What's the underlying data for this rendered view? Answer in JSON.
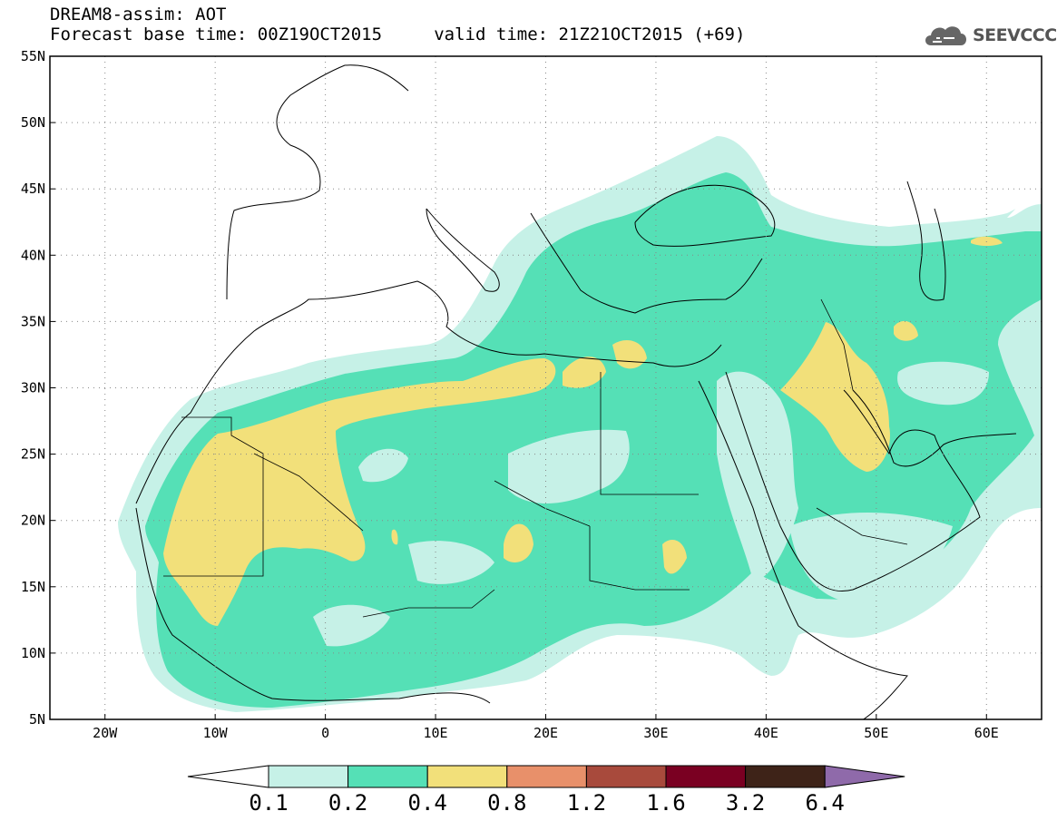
{
  "header": {
    "line1": "DREAM8-assim: AOT",
    "line2": "Forecast base time: 00Z19OCT2015     valid time: 21Z21OCT2015 (+69)"
  },
  "logo": {
    "text": "SEEVCCC",
    "icon": "cloud-icon"
  },
  "map": {
    "region": {
      "lon_min": -25,
      "lon_max": 65,
      "lat_min": 5,
      "lat_max": 55
    },
    "lat_labels": [
      "55N",
      "50N",
      "45N",
      "40N",
      "35N",
      "30N",
      "25N",
      "20N",
      "15N",
      "10N",
      "5N"
    ],
    "lat_values": [
      55,
      50,
      45,
      40,
      35,
      30,
      25,
      20,
      15,
      10,
      5
    ],
    "lon_labels": [
      "20W",
      "10W",
      "0",
      "10E",
      "20E",
      "30E",
      "40E",
      "50E",
      "60E"
    ],
    "lon_values": [
      -20,
      -10,
      0,
      10,
      20,
      30,
      40,
      50,
      60
    ],
    "grid": "dotted",
    "field": "aerosol optical thickness",
    "fill_colors": {
      "0.1": "#c6f1e7",
      "0.2": "#55e0b6",
      "0.4": "#f2e07a"
    }
  },
  "colorbar": {
    "labels": [
      "0.1",
      "0.2",
      "0.4",
      "0.8",
      "1.2",
      "1.6",
      "3.2",
      "6.4"
    ],
    "colors": [
      "#c6f1e7",
      "#55e0b6",
      "#f2e07a",
      "#e8906a",
      "#a84a3c",
      "#7a0022",
      "#3e2318",
      "#8f6aaa"
    ],
    "under_color": "#ffffff"
  }
}
